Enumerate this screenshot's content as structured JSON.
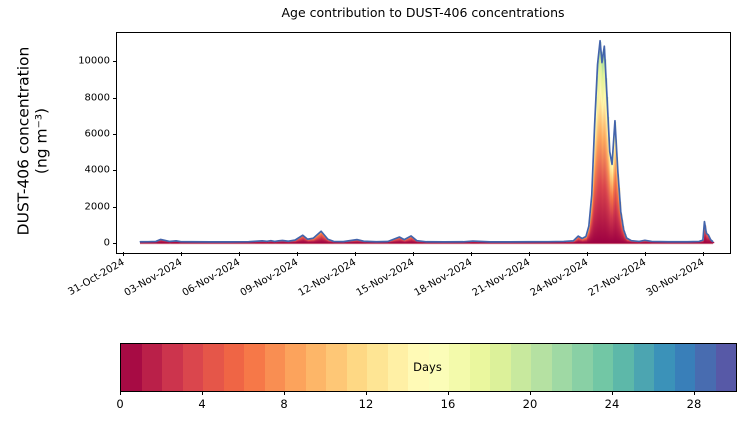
{
  "title": "Age contribution to DUST-406 concentrations",
  "y_axis": {
    "label_line1": "DUST-406 concentration",
    "label_line2": "(ng m⁻³)",
    "ticks": [
      0,
      2000,
      4000,
      6000,
      8000,
      10000
    ],
    "lim": [
      -500,
      11550
    ]
  },
  "x_axis": {
    "tick_labels": [
      "31-Oct-2024",
      "03-Nov-2024",
      "06-Nov-2024",
      "09-Nov-2024",
      "12-Nov-2024",
      "15-Nov-2024",
      "18-Nov-2024",
      "21-Nov-2024",
      "24-Nov-2024",
      "27-Nov-2024",
      "30-Nov-2024"
    ],
    "tick_days": [
      0,
      3,
      6,
      9,
      12,
      15,
      18,
      21,
      24,
      27,
      30
    ],
    "lim_days": [
      -0.31,
      31.35
    ]
  },
  "colorbar": {
    "label": "Days",
    "ticks": [
      0,
      4,
      8,
      12,
      16,
      20,
      24,
      28
    ],
    "range": [
      0,
      30
    ],
    "n_segments": 30,
    "spectral_anchors": [
      [
        0.0,
        "#9e0142"
      ],
      [
        0.1,
        "#d53e4f"
      ],
      [
        0.2,
        "#f46d43"
      ],
      [
        0.3,
        "#fdae61"
      ],
      [
        0.4,
        "#fee08b"
      ],
      [
        0.5,
        "#ffffbf"
      ],
      [
        0.6,
        "#e6f598"
      ],
      [
        0.7,
        "#abdda4"
      ],
      [
        0.8,
        "#66c2a5"
      ],
      [
        0.9,
        "#3288bd"
      ],
      [
        1.0,
        "#5e4fa2"
      ]
    ]
  },
  "colors": {
    "total_line": "#4364ab",
    "baseline": "#c0506b",
    "axis": "#000000",
    "background": "#ffffff"
  },
  "chart_data": {
    "type": "area",
    "title": "Age contribution to DUST-406 concentrations",
    "xlabel_dates": "31-Oct-2024 to 30-Nov-2024",
    "ylabel": "DUST-406 concentration (ng m⁻³)",
    "ylim": [
      -500,
      11550
    ],
    "legend": "colorbar Days 0-30 (Spectral colormap, 1-day discrete segments)",
    "units": "ng m-3; x = days since 31-Oct-2024 00:00",
    "points_format": [
      "day_offset",
      "total_concentration",
      "oldest_age_days_at_top_of_stack"
    ],
    "points": [
      [
        0.9,
        40,
        2
      ],
      [
        1.3,
        45,
        2
      ],
      [
        1.7,
        60,
        3
      ],
      [
        1.95,
        170,
        4
      ],
      [
        2.15,
        120,
        4
      ],
      [
        2.4,
        60,
        3
      ],
      [
        2.75,
        90,
        3
      ],
      [
        3.0,
        45,
        3
      ],
      [
        3.5,
        40,
        3
      ],
      [
        4.5,
        35,
        3
      ],
      [
        5.5,
        35,
        4
      ],
      [
        6.5,
        45,
        4
      ],
      [
        7.2,
        90,
        5
      ],
      [
        7.45,
        65,
        5
      ],
      [
        7.65,
        100,
        5
      ],
      [
        7.85,
        60,
        5
      ],
      [
        8.05,
        90,
        5
      ],
      [
        8.25,
        110,
        5
      ],
      [
        8.55,
        70,
        5
      ],
      [
        8.9,
        130,
        6
      ],
      [
        9.3,
        400,
        7
      ],
      [
        9.55,
        180,
        7
      ],
      [
        9.85,
        240,
        8
      ],
      [
        10.25,
        620,
        9
      ],
      [
        10.6,
        180,
        8
      ],
      [
        10.9,
        60,
        6
      ],
      [
        11.4,
        50,
        5
      ],
      [
        12.1,
        160,
        6
      ],
      [
        12.45,
        70,
        5
      ],
      [
        13.1,
        40,
        4
      ],
      [
        13.7,
        55,
        5
      ],
      [
        14.3,
        300,
        7
      ],
      [
        14.55,
        160,
        7
      ],
      [
        14.9,
        360,
        8
      ],
      [
        15.2,
        100,
        6
      ],
      [
        15.7,
        40,
        4
      ],
      [
        16.6,
        35,
        4
      ],
      [
        17.6,
        40,
        5
      ],
      [
        18.1,
        80,
        5
      ],
      [
        19.0,
        35,
        4
      ],
      [
        20.0,
        35,
        4
      ],
      [
        21.0,
        40,
        5
      ],
      [
        22.0,
        45,
        5
      ],
      [
        22.8,
        60,
        6
      ],
      [
        23.3,
        90,
        7
      ],
      [
        23.55,
        350,
        8
      ],
      [
        23.75,
        220,
        8
      ],
      [
        23.95,
        330,
        9
      ],
      [
        24.1,
        900,
        10
      ],
      [
        24.25,
        2600,
        12
      ],
      [
        24.4,
        6500,
        16
      ],
      [
        24.55,
        9800,
        20
      ],
      [
        24.68,
        11100,
        22
      ],
      [
        24.78,
        9900,
        21
      ],
      [
        24.9,
        10800,
        22
      ],
      [
        25.05,
        7800,
        20
      ],
      [
        25.18,
        5000,
        17
      ],
      [
        25.3,
        4300,
        15
      ],
      [
        25.45,
        6700,
        17
      ],
      [
        25.6,
        3900,
        14
      ],
      [
        25.75,
        1700,
        11
      ],
      [
        25.9,
        700,
        9
      ],
      [
        26.05,
        250,
        8
      ],
      [
        26.3,
        100,
        6
      ],
      [
        26.7,
        60,
        5
      ],
      [
        27.0,
        120,
        6
      ],
      [
        27.35,
        60,
        5
      ],
      [
        28.2,
        40,
        4
      ],
      [
        29.2,
        40,
        4
      ],
      [
        29.8,
        60,
        5
      ],
      [
        30.0,
        130,
        6
      ],
      [
        30.08,
        1150,
        8
      ],
      [
        30.18,
        500,
        7
      ],
      [
        30.28,
        420,
        6
      ],
      [
        30.4,
        150,
        4
      ],
      [
        30.5,
        60,
        3
      ]
    ]
  }
}
